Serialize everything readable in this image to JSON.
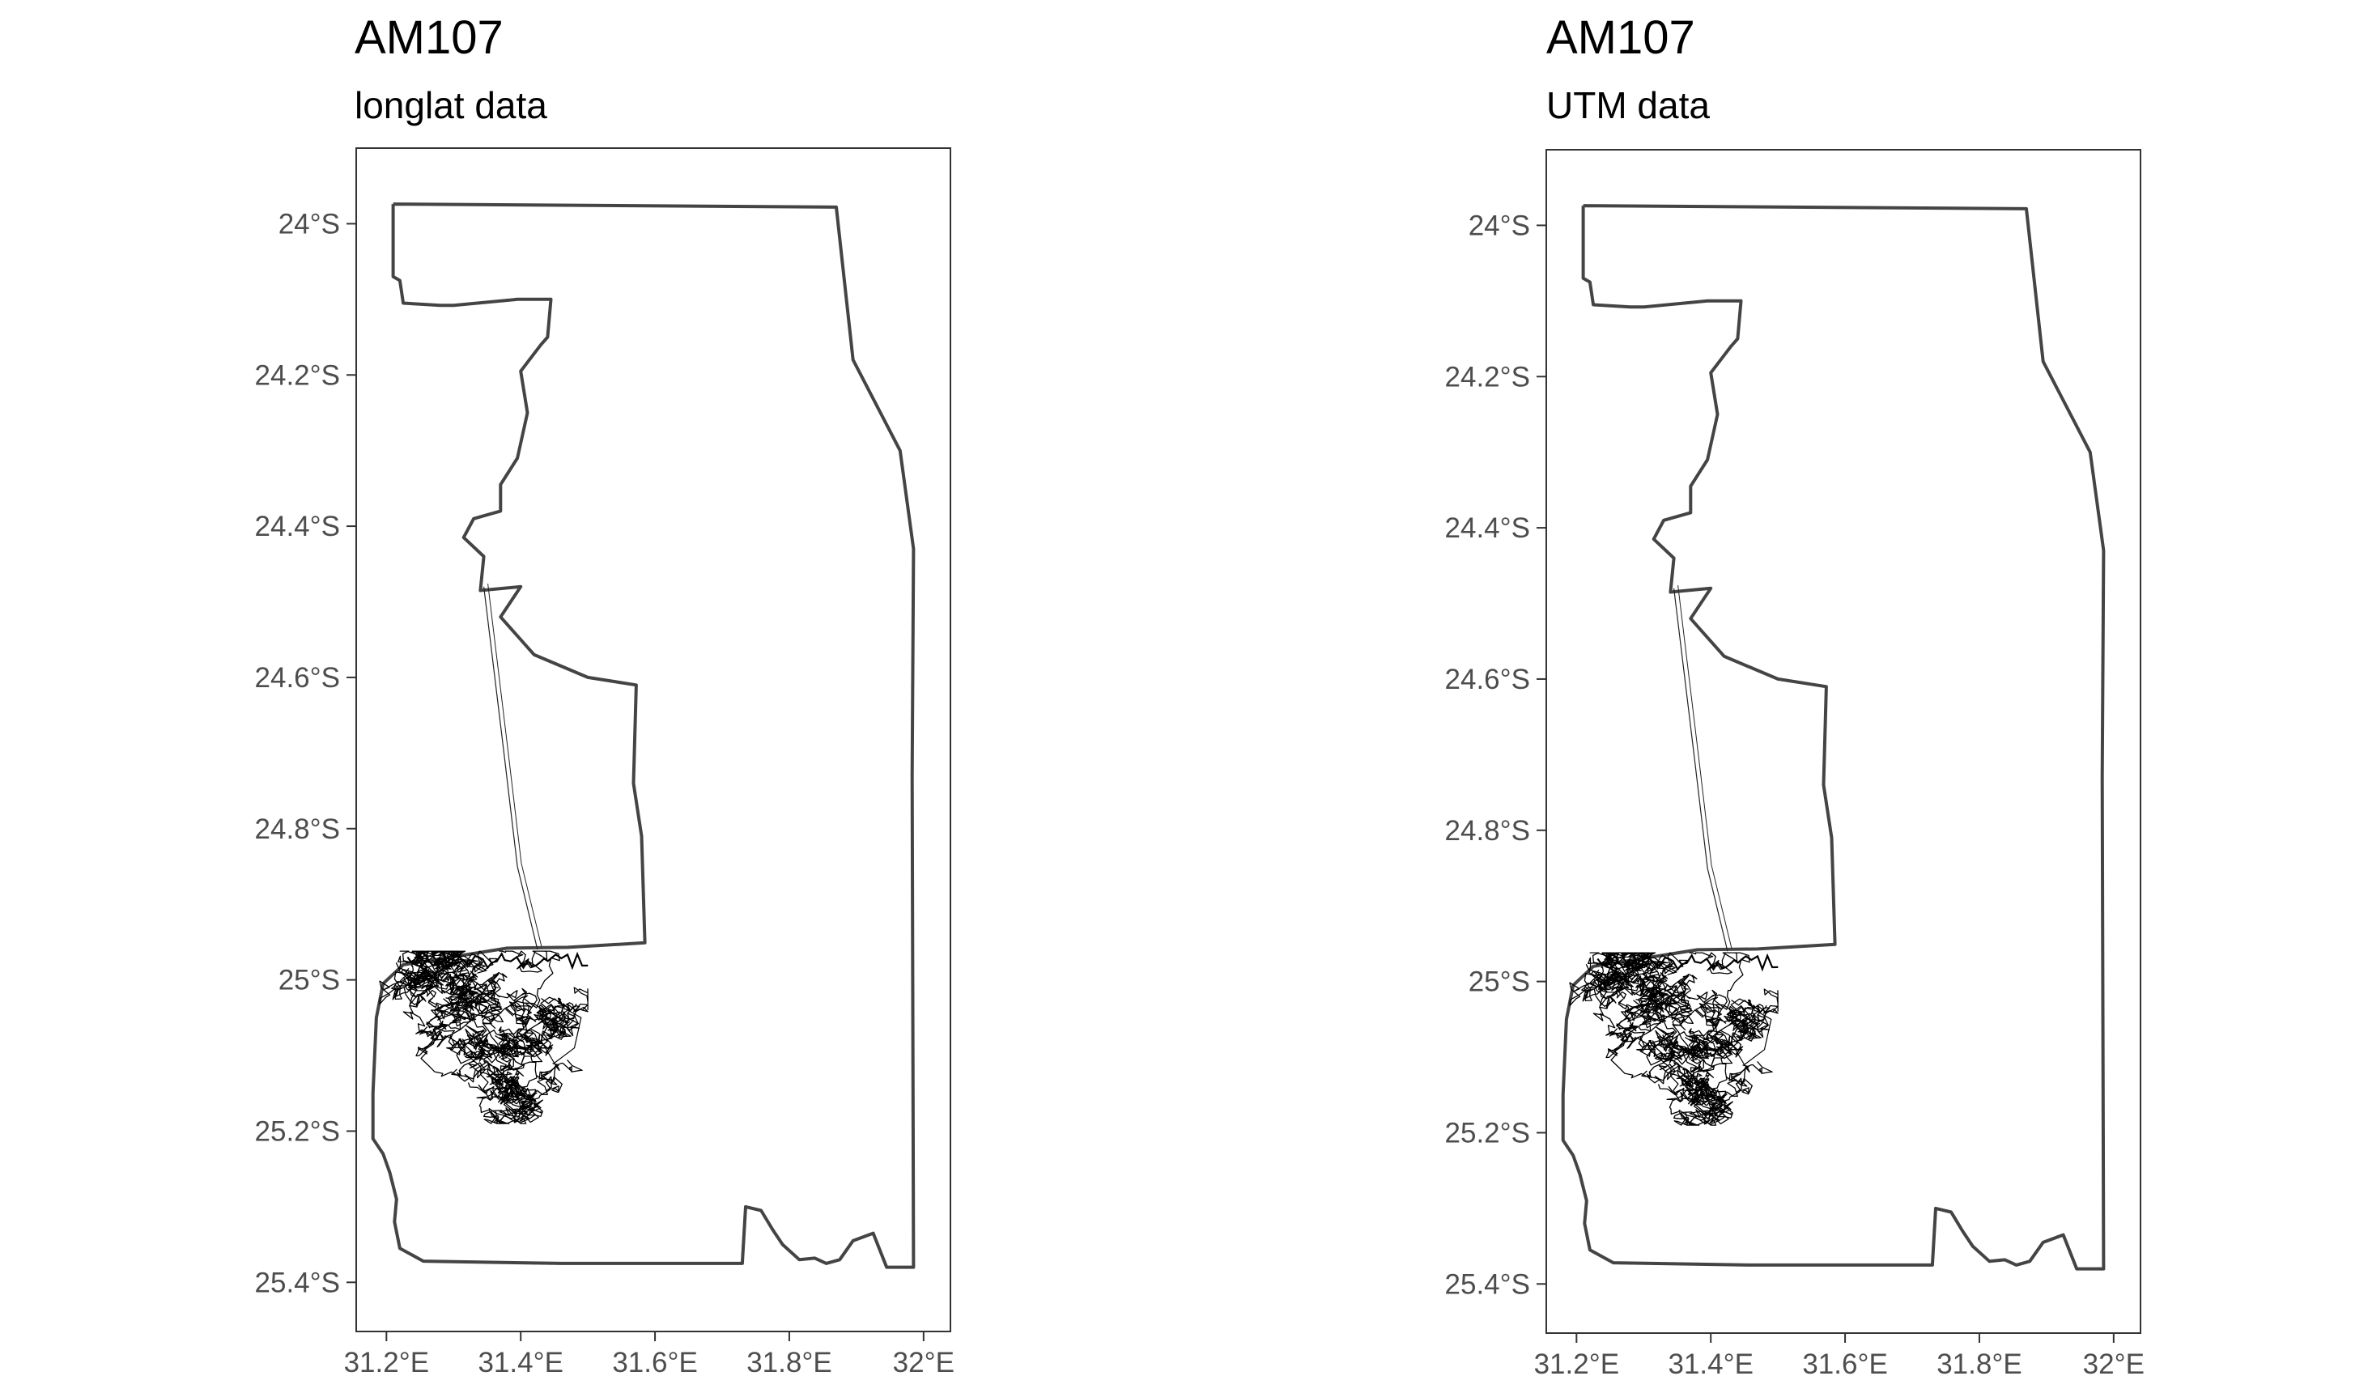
{
  "panels": [
    {
      "title": "AM107",
      "subtitle": "longlat data",
      "y_ticks": [
        "24°S",
        "24.2°S",
        "24.4°S",
        "24.6°S",
        "24.8°S",
        "25°S",
        "25.2°S",
        "25.4°S"
      ],
      "x_ticks": [
        "31.2°E",
        "31.4°E",
        "31.6°E",
        "31.8°E",
        "32°E"
      ]
    },
    {
      "title": "AM107",
      "subtitle": "UTM data",
      "y_ticks": [
        "24°S",
        "24.2°S",
        "24.4°S",
        "24.6°S",
        "24.8°S",
        "25°S",
        "25.2°S",
        "25.4°S"
      ],
      "x_ticks": [
        "31.2°E",
        "31.4°E",
        "31.6°E",
        "31.8°E",
        "32°E"
      ]
    }
  ],
  "map": {
    "lon_range": [
      31.155,
      32.04
    ],
    "lat_range": [
      -25.465,
      -23.9
    ],
    "y_tick_values": [
      -24.0,
      -24.2,
      -24.4,
      -24.6,
      -24.8,
      -25.0,
      -25.2,
      -25.4
    ],
    "x_tick_values": [
      31.2,
      31.4,
      31.6,
      31.8,
      32.0
    ],
    "boundary": [
      [
        31.21,
        -23.974
      ],
      [
        31.87,
        -23.978
      ],
      [
        31.895,
        -24.18
      ],
      [
        31.965,
        -24.3
      ],
      [
        31.985,
        -24.43
      ],
      [
        31.983,
        -24.73
      ],
      [
        31.985,
        -25.38
      ],
      [
        31.945,
        -25.38
      ],
      [
        31.925,
        -25.335
      ],
      [
        31.895,
        -25.345
      ],
      [
        31.875,
        -25.37
      ],
      [
        31.855,
        -25.375
      ],
      [
        31.838,
        -25.368
      ],
      [
        31.815,
        -25.37
      ],
      [
        31.79,
        -25.35
      ],
      [
        31.775,
        -25.33
      ],
      [
        31.758,
        -25.305
      ],
      [
        31.735,
        -25.3
      ],
      [
        31.73,
        -25.375
      ],
      [
        31.46,
        -25.375
      ],
      [
        31.255,
        -25.372
      ],
      [
        31.22,
        -25.355
      ],
      [
        31.212,
        -25.32
      ],
      [
        31.215,
        -25.29
      ],
      [
        31.205,
        -25.255
      ],
      [
        31.195,
        -25.23
      ],
      [
        31.18,
        -25.21
      ],
      [
        31.18,
        -25.15
      ],
      [
        31.185,
        -25.05
      ],
      [
        31.195,
        -25.005
      ],
      [
        31.225,
        -24.98
      ],
      [
        31.38,
        -24.958
      ],
      [
        31.47,
        -24.957
      ],
      [
        31.585,
        -24.951
      ],
      [
        31.58,
        -24.81
      ],
      [
        31.568,
        -24.74
      ],
      [
        31.572,
        -24.61
      ],
      [
        31.5,
        -24.6
      ],
      [
        31.42,
        -24.57
      ],
      [
        31.39,
        -24.54
      ],
      [
        31.37,
        -24.52
      ],
      [
        31.4,
        -24.48
      ],
      [
        31.34,
        -24.485
      ],
      [
        31.345,
        -24.44
      ],
      [
        31.315,
        -24.415
      ],
      [
        31.33,
        -24.39
      ],
      [
        31.37,
        -24.38
      ],
      [
        31.37,
        -24.345
      ],
      [
        31.395,
        -24.31
      ],
      [
        31.41,
        -24.25
      ],
      [
        31.4,
        -24.195
      ],
      [
        31.43,
        -24.16
      ],
      [
        31.44,
        -24.15
      ],
      [
        31.445,
        -24.1
      ],
      [
        31.395,
        -24.1
      ],
      [
        31.3,
        -24.108
      ],
      [
        31.28,
        -24.108
      ],
      [
        31.225,
        -24.105
      ],
      [
        31.22,
        -24.075
      ],
      [
        31.21,
        -24.07
      ],
      [
        31.21,
        -23.974
      ]
    ],
    "track_seed": 107,
    "track_spine": [
      [
        31.345,
        -24.48
      ],
      [
        31.375,
        -24.7
      ],
      [
        31.395,
        -24.85
      ],
      [
        31.425,
        -24.96
      ]
    ]
  }
}
